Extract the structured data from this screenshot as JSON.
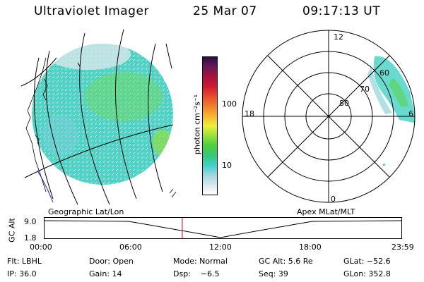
{
  "header": {
    "instrument": "Ultraviolet Imager",
    "date": "25 Mar 07",
    "time": "09:17:13 UT"
  },
  "colorbar": {
    "label": "photon cm⁻²s⁻¹",
    "ticks": [
      "100",
      "10"
    ],
    "scale": "log",
    "colors": [
      "#ffffff",
      "#d9e7ec",
      "#9fd6df",
      "#3dd2c9",
      "#39c77c",
      "#4ccf3d",
      "#95e23b",
      "#f0ef3a",
      "#f8b431",
      "#ee7f2c",
      "#e84d2f",
      "#cc1a35",
      "#a8123d",
      "#6b1755",
      "#2a0e45"
    ]
  },
  "polar_plot": {
    "labels": {
      "top": "12",
      "bottom": "0",
      "left": "18",
      "right": "6"
    },
    "rings": [
      "80",
      "70",
      "60"
    ]
  },
  "timeline": {
    "left_label": "Geographic Lat/Lon",
    "right_label": "Apex MLat/MLT",
    "axis_title": "GC Alt",
    "y_ticks": [
      "9.0",
      "1.8"
    ],
    "x_ticks": [
      "00:00",
      "06:00",
      "12:00",
      "18:00",
      "23:59"
    ],
    "current_time_fraction": 0.386,
    "marker_color": "#cc0000"
  },
  "info": {
    "flt": "Flt: LBHL",
    "door": "Door: Open",
    "mode": "Mode: Normal",
    "gc_alt": "GC Alt: 5.6 Re",
    "glat": "GLat: −52.6",
    "ip": "IP: 36.0",
    "gain": "Gain: 14",
    "dsp": "Dsp:    −6.5",
    "seq": "Seq: 39",
    "glon": "GLon: 352.8"
  }
}
